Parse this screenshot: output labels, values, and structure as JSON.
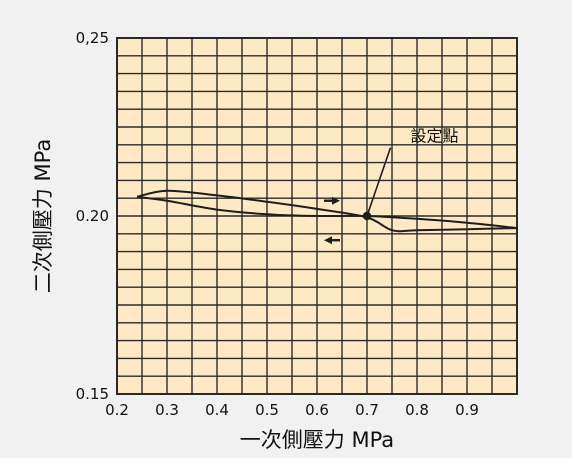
{
  "chart_data": {
    "type": "line",
    "xlabel": "一次側壓力 MPa",
    "ylabel": "二次側壓力 MPa",
    "xlim": [
      0.2,
      1.0
    ],
    "ylim": [
      0.15,
      0.25
    ],
    "x_ticks": [
      "0.2",
      "0.3",
      "0.4",
      "0.5",
      "0.6",
      "0.7",
      "0.8",
      "0.9"
    ],
    "y_ticks": [
      {
        "value": 0.25,
        "label": "0,25"
      },
      {
        "value": 0.2,
        "label": "0.20"
      },
      {
        "value": 0.15,
        "label": "0.15"
      }
    ],
    "grid": true,
    "series": [
      {
        "x": [
          0.24,
          0.3,
          0.4,
          0.5,
          0.6,
          0.7,
          0.8,
          0.9,
          1.0
        ],
        "y": [
          0.2054,
          0.2043,
          0.2018,
          0.2005,
          0.2,
          0.2,
          0.1992,
          0.1981,
          0.1966
        ]
      },
      {
        "x": [
          0.24,
          0.3,
          0.4,
          0.5,
          0.6,
          0.7,
          0.75,
          0.8,
          0.9,
          1.0
        ],
        "y": [
          0.2054,
          0.2071,
          0.2058,
          0.204,
          0.202,
          0.1996,
          0.196,
          0.196,
          0.1963,
          0.1966
        ]
      }
    ],
    "annotations": [
      {
        "text": "設定點",
        "x": 0.7,
        "y": 0.2,
        "text_x": 0.835,
        "text_y": 0.2209
      }
    ],
    "arrows": [
      {
        "x": 0.63,
        "y": 0.2043,
        "direction": "right"
      },
      {
        "x": 0.63,
        "y": 0.1932,
        "direction": "left"
      }
    ],
    "colors": {
      "plot_bg": "#fdeac4",
      "grid": "#2a2a2a",
      "line": "#1e1e1e",
      "outer_bg": "#f1f1f1"
    }
  }
}
